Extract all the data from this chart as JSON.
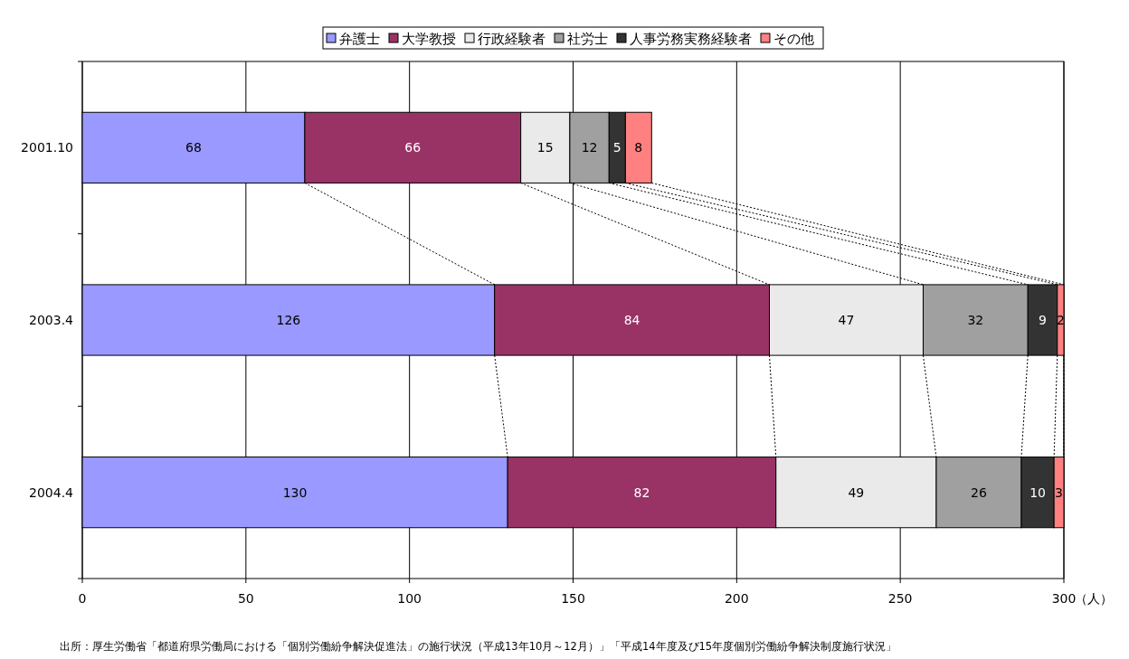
{
  "chart_data": {
    "type": "bar",
    "orientation": "horizontal",
    "stacked": true,
    "data_labels": true,
    "grid": "x",
    "legend": "top",
    "categories": [
      "2001.10",
      "2003.4",
      "2004.4"
    ],
    "series": [
      {
        "name": "弁護士",
        "color": "#9999ff",
        "values": [
          68,
          126,
          130
        ]
      },
      {
        "name": "大学教授",
        "color": "#993366",
        "values": [
          66,
          84,
          82
        ]
      },
      {
        "name": "行政経験者",
        "color": "#eaeaea",
        "values": [
          15,
          47,
          49
        ]
      },
      {
        "name": "社労士",
        "color": "#a0a0a0",
        "values": [
          12,
          32,
          26
        ]
      },
      {
        "name": "人事労務実務経験者",
        "color": "#333333",
        "values": [
          5,
          9,
          10
        ]
      },
      {
        "name": "その他",
        "color": "#ff8080",
        "values": [
          8,
          2,
          3
        ]
      }
    ],
    "xlim": [
      0,
      300
    ],
    "xticks": [
      0,
      50,
      100,
      150,
      200,
      250,
      300
    ],
    "xlabel": "（人）",
    "annotations": [
      "出所：厚生労働省「都道府県労働局における「個別労働紛争解決促進法」の施行状況（平成13年10月～12月）」「平成14年度及び15年度個別労働紛争解決制度施行状況」"
    ]
  }
}
